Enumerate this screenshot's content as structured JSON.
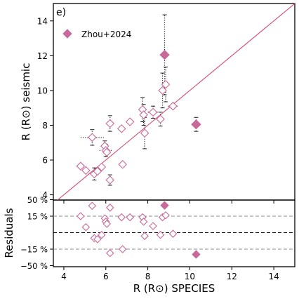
{
  "panel_label": "e)",
  "chart_data": [
    {
      "type": "scatter",
      "title": "",
      "panel_label": "e)",
      "xlabel": "",
      "ylabel": "R (R⊙) seismic",
      "xlim": [
        3.5,
        15
      ],
      "ylim": [
        3.7,
        15
      ],
      "yticks": [
        4,
        6,
        8,
        10,
        12,
        14
      ],
      "reference_line": "y = x",
      "colors": {
        "marker": "#c8699a",
        "line": "#d64a72"
      },
      "series": [
        {
          "marker": "open-diamond",
          "points": [
            {
              "x": 4.8,
              "y": 5.65,
              "xerr": 0.0,
              "yerr": 0.0
            },
            {
              "x": 5.05,
              "y": 5.4,
              "xerr": 0.0,
              "yerr": 0.0
            },
            {
              "x": 5.35,
              "y": 7.3,
              "xerr": 0.55,
              "yerr": 0.45
            },
            {
              "x": 5.45,
              "y": 5.2,
              "xerr": 0.0,
              "yerr": 0.35
            },
            {
              "x": 5.6,
              "y": 5.35,
              "xerr": 0.0,
              "yerr": 0.0
            },
            {
              "x": 5.8,
              "y": 5.6,
              "xerr": 0.0,
              "yerr": 0.0
            },
            {
              "x": 5.95,
              "y": 6.8,
              "xerr": 0.0,
              "yerr": 0.3
            },
            {
              "x": 6.0,
              "y": 6.55,
              "xerr": 0.3,
              "yerr": 0.35
            },
            {
              "x": 6.05,
              "y": 6.45,
              "xerr": 0.0,
              "yerr": 0.0
            },
            {
              "x": 6.2,
              "y": 8.1,
              "xerr": 0.0,
              "yerr": 0.45
            },
            {
              "x": 6.2,
              "y": 4.85,
              "xerr": 0.0,
              "yerr": 0.3
            },
            {
              "x": 6.75,
              "y": 7.8,
              "xerr": 0.0,
              "yerr": 0.0
            },
            {
              "x": 6.8,
              "y": 5.75,
              "xerr": 0.0,
              "yerr": 0.0
            },
            {
              "x": 7.15,
              "y": 8.2,
              "xerr": 0.0,
              "yerr": 0.0
            },
            {
              "x": 7.75,
              "y": 8.9,
              "xerr": 0.0,
              "yerr": 0.7
            },
            {
              "x": 7.8,
              "y": 8.6,
              "xerr": 0.0,
              "yerr": 0.6
            },
            {
              "x": 7.85,
              "y": 7.55,
              "xerr": 0.0,
              "yerr": 0.9
            },
            {
              "x": 8.25,
              "y": 8.75,
              "xerr": 0.25,
              "yerr": 0.35
            },
            {
              "x": 8.6,
              "y": 8.35,
              "xerr": 0.0,
              "yerr": 0.4
            },
            {
              "x": 8.7,
              "y": 10.0,
              "xerr": 0.0,
              "yerr": 1.0
            },
            {
              "x": 8.85,
              "y": 10.35,
              "xerr": 0.0,
              "yerr": 1.0
            },
            {
              "x": 9.2,
              "y": 9.1,
              "xerr": 0.25,
              "yerr": 0.0
            }
          ]
        },
        {
          "name": "Zhou+2024",
          "marker": "filled-diamond",
          "points": [
            {
              "x": 8.8,
              "y": 12.05,
              "xerr": 0.0,
              "yerr": 2.3
            },
            {
              "x": 10.3,
              "y": 8.05,
              "xerr": 0.0,
              "yerr": 0.4
            }
          ]
        }
      ],
      "legend": {
        "placement": "top-left",
        "entries": [
          "Zhou+2024"
        ]
      }
    },
    {
      "type": "scatter",
      "title": "",
      "xlabel": "R (R⊙) SPECIES",
      "ylabel": "Residuals",
      "xlim": [
        3.5,
        15
      ],
      "ylim": [
        -50,
        50
      ],
      "yscale": "symmetric-log (percent)",
      "xticks": [
        4,
        6,
        8,
        10,
        12,
        14
      ],
      "ytick_labels": [
        "50 %",
        "15 %",
        "−15 %",
        "−50 %"
      ],
      "yticks": [
        50,
        15,
        -15,
        -50
      ],
      "reference_lines": [
        {
          "y": 15,
          "style": "dashed",
          "color": "#888888"
        },
        {
          "y": 0,
          "style": "dashed",
          "color": "#000000"
        },
        {
          "y": -15,
          "style": "dashed",
          "color": "#888888"
        }
      ],
      "series": [
        {
          "marker": "open-diamond",
          "points": [
            {
              "x": 4.8,
              "y": 15
            },
            {
              "x": 5.05,
              "y": 5
            },
            {
              "x": 5.35,
              "y": 32
            },
            {
              "x": 5.45,
              "y": -5
            },
            {
              "x": 5.6,
              "y": -6
            },
            {
              "x": 5.8,
              "y": -2
            },
            {
              "x": 5.95,
              "y": 13
            },
            {
              "x": 6.0,
              "y": 10
            },
            {
              "x": 6.05,
              "y": 8
            },
            {
              "x": 6.2,
              "y": 28
            },
            {
              "x": 6.2,
              "y": -20
            },
            {
              "x": 6.75,
              "y": 14
            },
            {
              "x": 6.8,
              "y": -15
            },
            {
              "x": 7.15,
              "y": 14
            },
            {
              "x": 7.75,
              "y": 14
            },
            {
              "x": 7.8,
              "y": 10
            },
            {
              "x": 7.85,
              "y": -3
            },
            {
              "x": 8.25,
              "y": 6
            },
            {
              "x": 8.6,
              "y": -2
            },
            {
              "x": 8.7,
              "y": 14
            },
            {
              "x": 8.85,
              "y": 16
            },
            {
              "x": 9.2,
              "y": -1
            }
          ]
        },
        {
          "name": "Zhou+2024",
          "marker": "filled-diamond",
          "points": [
            {
              "x": 8.8,
              "y": 33
            },
            {
              "x": 10.3,
              "y": -22
            }
          ]
        }
      ]
    }
  ]
}
